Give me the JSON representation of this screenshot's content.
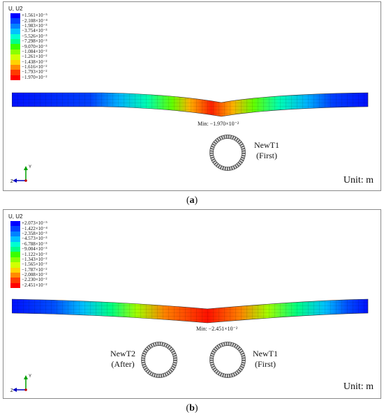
{
  "panels": [
    {
      "id": "a",
      "legend_title": "U, U2",
      "legend_colors": [
        "#0000ff",
        "#0041ff",
        "#0082ff",
        "#00c2ff",
        "#00ffd2",
        "#00ff8a",
        "#00ff3a",
        "#3aff00",
        "#8aff00",
        "#d2ff00",
        "#ffd200",
        "#ff8a00",
        "#ff3a00",
        "#ff0000"
      ],
      "legend_values": [
        "+1.561×10⁻⁵",
        "−2.108×10⁻⁴",
        "−1.983×10⁻³",
        "−3.754×10⁻³",
        "−5.526×10⁻³",
        "−7.298×10⁻³",
        "−9.070×10⁻³",
        "−1.084×10⁻²",
        "−1.261×10⁻²",
        "−1.438×10⁻²",
        "−1.616×10⁻²",
        "−1.793×10⁻²",
        "−1.970×10⁻²"
      ],
      "min_label": "Min: −1.970×10⁻²",
      "pipes": [
        {
          "name": "NewT1",
          "note": "(First)"
        }
      ],
      "unit": "Unit: m",
      "caption_letter": "a"
    },
    {
      "id": "b",
      "legend_title": "U, U2",
      "legend_colors": [
        "#0000ff",
        "#0041ff",
        "#0082ff",
        "#00c2ff",
        "#00ffd2",
        "#00ff8a",
        "#00ff3a",
        "#3aff00",
        "#8aff00",
        "#d2ff00",
        "#ffd200",
        "#ff8a00",
        "#ff3a00",
        "#ff0000"
      ],
      "legend_values": [
        "+2.073×10⁻⁵",
        "−1.422×10⁻⁴",
        "−2.358×10⁻³",
        "−4.573×10⁻³",
        "−6.788×10⁻³",
        "−9.004×10⁻³",
        "−1.122×10⁻²",
        "−1.343×10⁻²",
        "−1.565×10⁻²",
        "−1.787×10⁻²",
        "−2.008×10⁻²",
        "−2.230×10⁻²",
        "−2.451×10⁻²"
      ],
      "min_label": "Min: −2.451×10⁻²",
      "pipes": [
        {
          "name": "NewT2",
          "note": "(After)"
        },
        {
          "name": "NewT1",
          "note": "(First)"
        }
      ],
      "unit": "Unit: m",
      "caption_letter": "b"
    }
  ],
  "triad": {
    "y": "Y",
    "z": "Z"
  }
}
